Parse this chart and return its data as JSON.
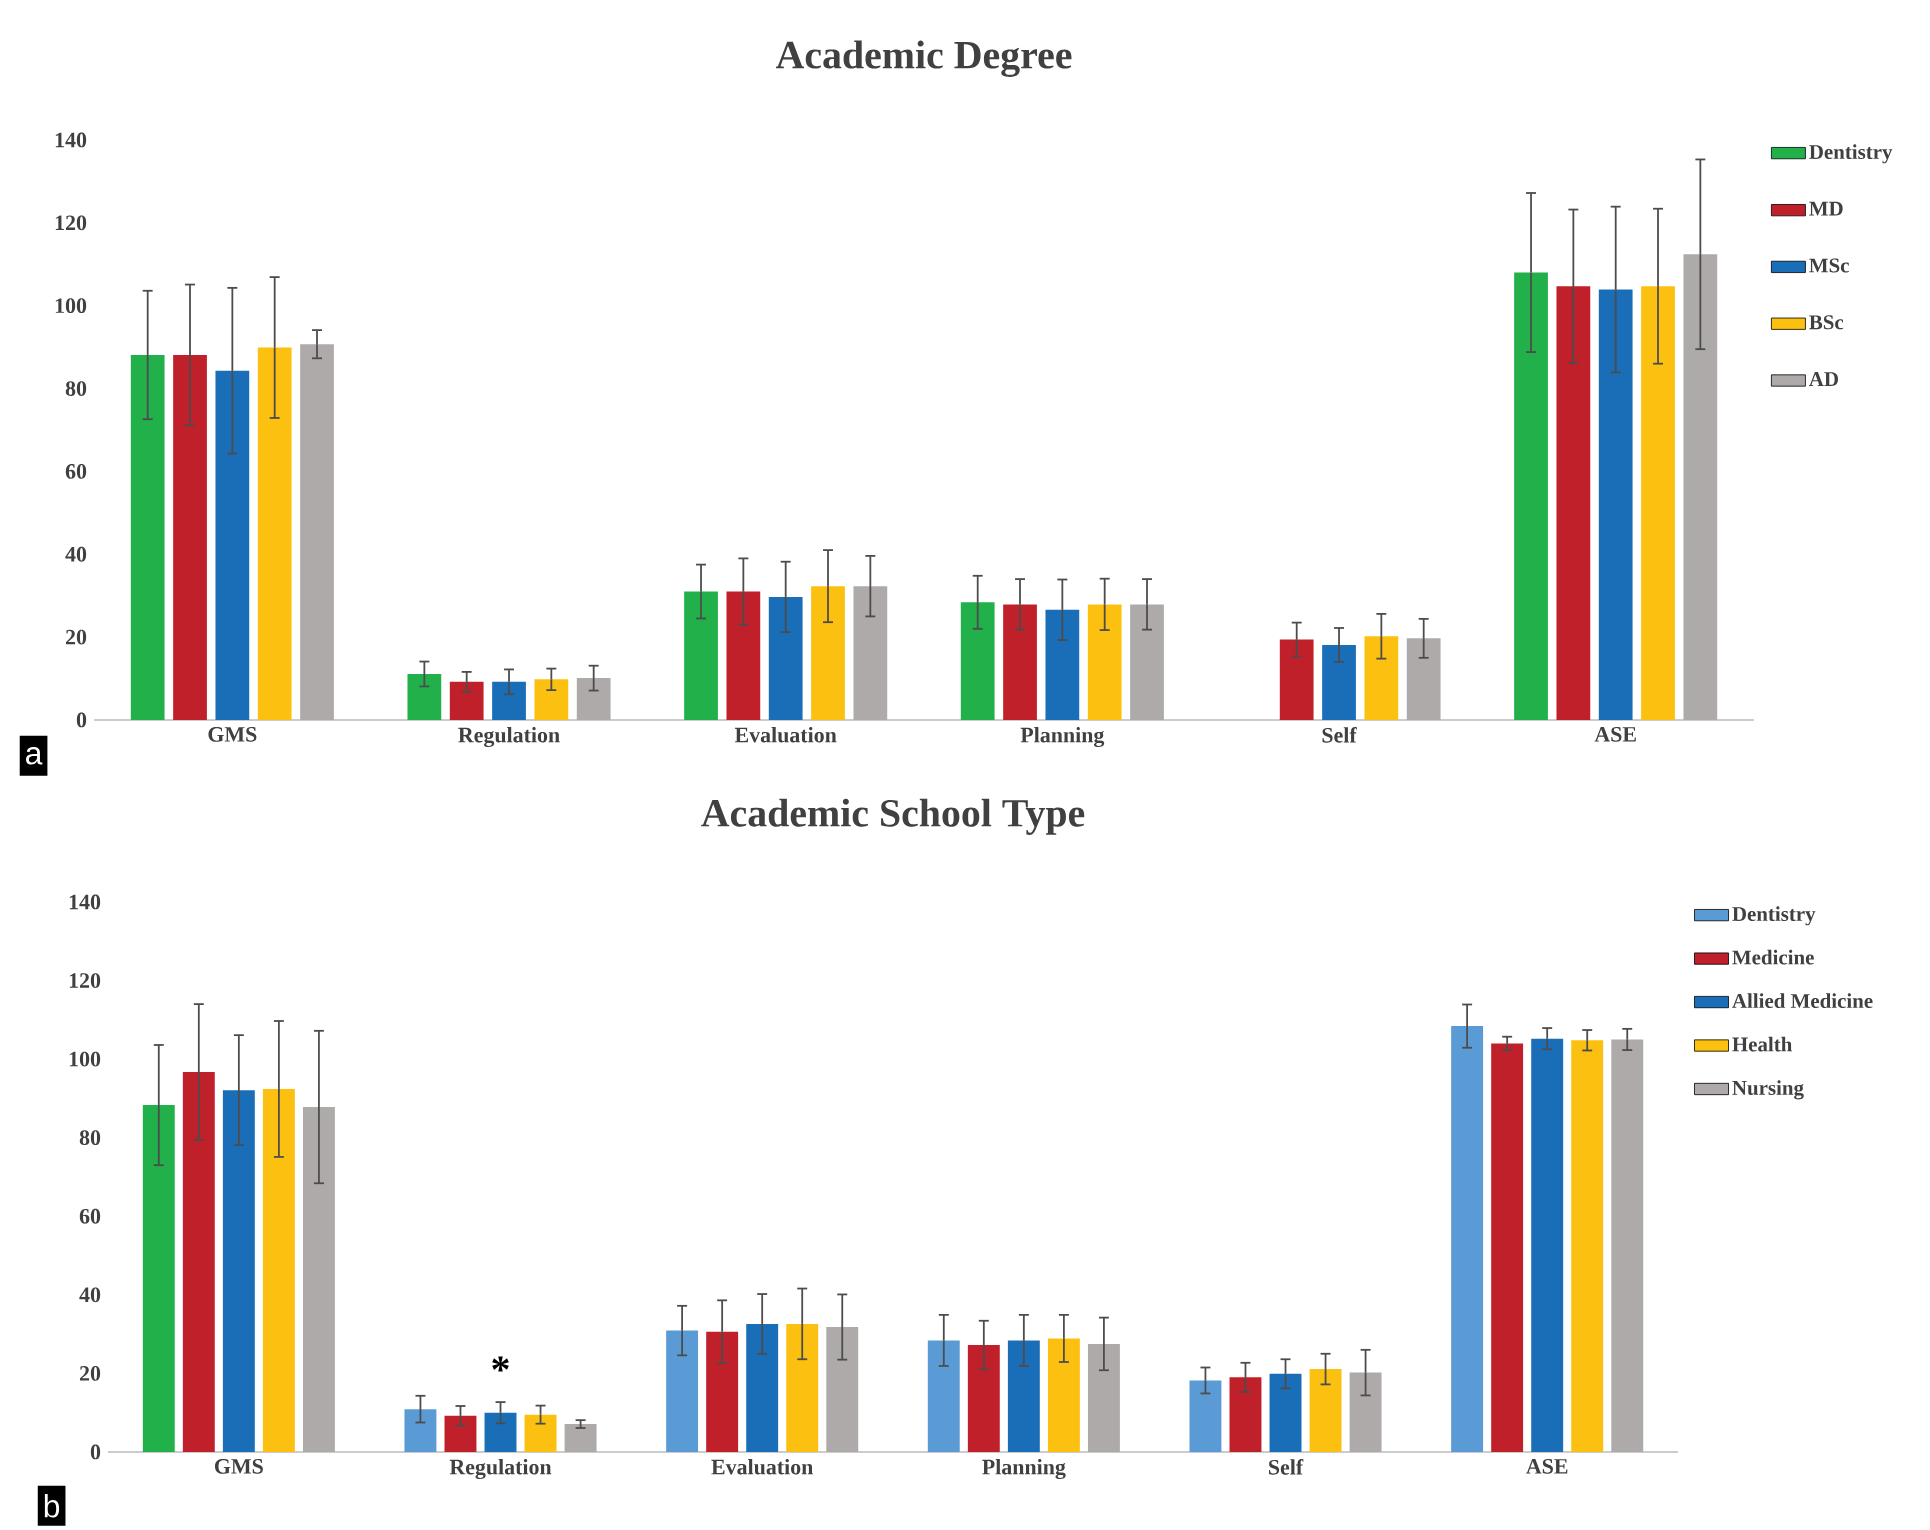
{
  "chart_data": [
    {
      "type": "bar",
      "title": "Academic Degree",
      "categories": [
        "GMS",
        "Regulation",
        "Evaluation",
        "Planning",
        "Self",
        "ASE"
      ],
      "ylim": [
        0,
        140
      ],
      "yticks": [
        0,
        20,
        40,
        60,
        80,
        100,
        120,
        140
      ],
      "legend": "top right",
      "annotations": [
        "a"
      ],
      "series": [
        {
          "name": "Dentistry",
          "color": "#22b04b",
          "values": [
            88.1,
            11.1,
            31.0,
            28.4,
            null,
            108.0
          ],
          "errors": [
            15.5,
            3,
            6.5,
            6.4,
            null,
            19.2
          ]
        },
        {
          "name": "MD",
          "color": "#c0202a",
          "values": [
            88.1,
            9.2,
            31.0,
            27.9,
            19.4,
            104.7
          ],
          "errors": [
            17,
            2.4,
            8,
            6.1,
            4.1,
            18.5
          ]
        },
        {
          "name": "MSc",
          "color": "#1a6eb8",
          "values": [
            84.3,
            9.2,
            29.7,
            26.6,
            18.1,
            103.9
          ],
          "errors": [
            20,
            3,
            8.5,
            7.3,
            4.1,
            20
          ]
        },
        {
          "name": "BSc",
          "color": "#fcc010",
          "values": [
            89.9,
            9.8,
            32.3,
            27.9,
            20.2,
            104.7
          ],
          "errors": [
            17,
            2.6,
            8.7,
            6.2,
            5.4,
            18.7
          ]
        },
        {
          "name": "AD",
          "color": "#aeaaaa",
          "values": [
            90.7,
            10.1,
            32.3,
            27.9,
            19.7,
            112.4
          ],
          "errors": [
            3.4,
            3,
            7.3,
            6.1,
            4.7,
            22.9
          ]
        }
      ]
    },
    {
      "type": "bar",
      "title": "Academic School Type",
      "categories": [
        "GMS",
        "Regulation",
        "Evaluation",
        "Planning",
        "Self",
        "ASE"
      ],
      "ylim": [
        0,
        140
      ],
      "yticks": [
        0,
        20,
        40,
        60,
        80,
        100,
        120,
        140
      ],
      "legend": "top right",
      "annotations": [
        "b",
        "*"
      ],
      "series": [
        {
          "name": "Dentistry",
          "color": "#5b9bd5",
          "colors": [
            "#22b04b",
            "#5b9bd5",
            "#5b9bd5",
            "#5b9bd5",
            "#5b9bd5",
            "#5b9bd5"
          ],
          "values": [
            88.3,
            10.9,
            30.9,
            28.4,
            18.2,
            108.4
          ],
          "errors": [
            15.3,
            3.4,
            6.3,
            6.5,
            3.3,
            5.5
          ]
        },
        {
          "name": "Medicine",
          "color": "#c0202a",
          "values": [
            96.7,
            9.2,
            30.6,
            27.2,
            19.0,
            104.0
          ],
          "errors": [
            17.3,
            2.5,
            8,
            6.2,
            3.7,
            1.7
          ]
        },
        {
          "name": "Allied Medicine",
          "color": "#1a6eb8",
          "values": [
            92.1,
            10.0,
            32.6,
            28.4,
            19.9,
            105.2
          ],
          "errors": [
            14,
            2.7,
            7.6,
            6.5,
            3.7,
            2.7
          ]
        },
        {
          "name": "Health",
          "color": "#fcc010",
          "values": [
            92.4,
            9.5,
            32.6,
            28.9,
            21.1,
            104.8
          ],
          "errors": [
            17.3,
            2.3,
            9,
            6,
            3.9,
            2.6
          ]
        },
        {
          "name": "Nursing",
          "color": "#aeaaaa",
          "values": [
            87.8,
            7.1,
            31.8,
            27.5,
            20.2,
            105.0
          ],
          "errors": [
            19.4,
            1,
            8.3,
            6.7,
            5.8,
            2.7
          ]
        }
      ]
    }
  ]
}
